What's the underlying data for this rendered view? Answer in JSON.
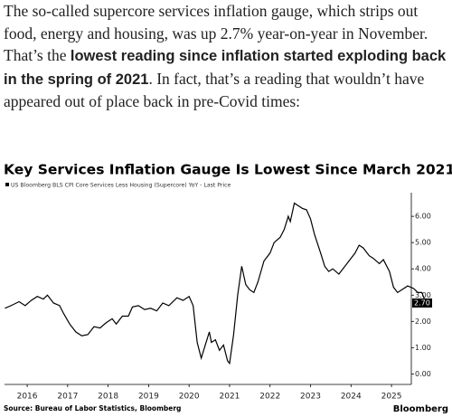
{
  "article": {
    "segments": [
      {
        "text": "The so-called supercore services inflation gauge, which strips out food, energy and housing, was up 2.7% year-on-year in November. That’s the ",
        "bold": false
      },
      {
        "text": "lowest reading since inflation started exploding back in the spring of 2021",
        "bold": true
      },
      {
        "text": ". In fact, that’s a reading that wouldn’t have appeared out of place back in pre-Covid times:",
        "bold": false
      }
    ]
  },
  "chart_data": {
    "type": "line",
    "title": "Key Services Inflation Gauge Is Lowest Since March 2021",
    "x": [
      2015.45,
      2015.6,
      2015.8,
      2015.95,
      2016.1,
      2016.25,
      2016.4,
      2016.5,
      2016.65,
      2016.8,
      2016.9,
      2017.05,
      2017.2,
      2017.35,
      2017.5,
      2017.65,
      2017.8,
      2017.95,
      2018.1,
      2018.2,
      2018.35,
      2018.5,
      2018.6,
      2018.75,
      2018.9,
      2019.05,
      2019.2,
      2019.35,
      2019.5,
      2019.7,
      2019.85,
      2020.0,
      2020.1,
      2020.2,
      2020.3,
      2020.4,
      2020.5,
      2020.55,
      2020.65,
      2020.75,
      2020.85,
      2020.95,
      2021.0,
      2021.1,
      2021.2,
      2021.3,
      2021.4,
      2021.5,
      2021.6,
      2021.7,
      2021.85,
      2022.0,
      2022.1,
      2022.25,
      2022.35,
      2022.45,
      2022.5,
      2022.6,
      2022.7,
      2022.8,
      2022.9,
      2023.0,
      2023.1,
      2023.25,
      2023.35,
      2023.45,
      2023.55,
      2023.7,
      2023.8,
      2023.95,
      2024.1,
      2024.2,
      2024.3,
      2024.45,
      2024.55,
      2024.7,
      2024.8,
      2024.95,
      2025.05,
      2025.15,
      2025.25,
      2025.4,
      2025.55,
      2025.65,
      2025.75,
      2025.85
    ],
    "series": [
      {
        "name": "US Bloomberg BLS CPI Core Services Less Housing (Supercore) YoY - Last Price",
        "color": "#000000",
        "values": [
          2.5,
          2.6,
          2.75,
          2.6,
          2.8,
          2.95,
          2.85,
          3.0,
          2.7,
          2.6,
          2.3,
          1.9,
          1.6,
          1.45,
          1.5,
          1.8,
          1.75,
          1.95,
          2.1,
          1.9,
          2.2,
          2.2,
          2.55,
          2.6,
          2.45,
          2.5,
          2.4,
          2.7,
          2.6,
          2.9,
          2.8,
          2.95,
          2.6,
          1.2,
          0.6,
          1.1,
          1.6,
          1.2,
          1.3,
          0.9,
          1.1,
          0.5,
          0.4,
          1.5,
          3.0,
          4.1,
          3.4,
          3.2,
          3.1,
          3.5,
          4.3,
          4.6,
          5.0,
          5.2,
          5.5,
          6.0,
          5.8,
          6.5,
          6.4,
          6.3,
          6.25,
          5.9,
          5.3,
          4.6,
          4.1,
          3.9,
          4.0,
          3.8,
          4.0,
          4.3,
          4.6,
          4.9,
          4.8,
          4.5,
          4.4,
          4.2,
          4.35,
          3.9,
          3.3,
          3.1,
          3.2,
          3.35,
          3.25,
          3.1,
          3.1,
          2.7
        ]
      }
    ],
    "xlim": [
      2015.44,
      2025.49
    ],
    "xticks": [
      2016,
      2017,
      2018,
      2019,
      2020,
      2021,
      2022,
      2023,
      2024,
      2025
    ],
    "ylim": [
      -0.4,
      6.9
    ],
    "yticks": [
      {
        "value": 0,
        "label": "0.00"
      },
      {
        "value": 1,
        "label": "1.00"
      },
      {
        "value": 2,
        "label": "2.00"
      },
      {
        "value": 3,
        "label": "3.00"
      },
      {
        "value": 4,
        "label": "4.00"
      },
      {
        "value": 5,
        "label": "5.00"
      },
      {
        "value": 6,
        "label": "6.00"
      }
    ],
    "last_price": {
      "value": 2.7,
      "label": "2.70"
    },
    "source": "Source: Bureau of Labor Statistics, Bloomberg",
    "brand": "Bloomberg"
  }
}
